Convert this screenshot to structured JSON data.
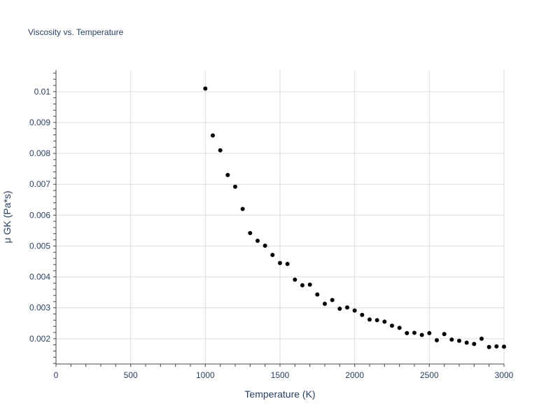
{
  "chart_data": {
    "type": "scatter",
    "title": "Viscosity vs. Temperature",
    "xlabel": "Temperature (K)",
    "ylabel": "μ GK (Pa*s)",
    "xlim": [
      0,
      3000
    ],
    "ylim": [
      0.00118,
      0.0107
    ],
    "xticks": [
      0,
      500,
      1000,
      1500,
      2000,
      2500,
      3000
    ],
    "xtick_labels": [
      "0",
      "500",
      "1000",
      "1500",
      "2000",
      "2500",
      "3000"
    ],
    "yticks": [
      0.002,
      0.003,
      0.004,
      0.005,
      0.006,
      0.007,
      0.008,
      0.009,
      0.01
    ],
    "ytick_labels": [
      "0.002",
      "0.003",
      "0.004",
      "0.005",
      "0.006",
      "0.007",
      "0.008",
      "0.009",
      "0.01"
    ],
    "grid": true,
    "marker_color": "#000000",
    "x": [
      1000,
      1050,
      1100,
      1150,
      1200,
      1250,
      1300,
      1350,
      1400,
      1450,
      1500,
      1550,
      1600,
      1650,
      1700,
      1750,
      1800,
      1850,
      1900,
      1950,
      2000,
      2050,
      2100,
      2150,
      2200,
      2250,
      2300,
      2350,
      2400,
      2450,
      2500,
      2550,
      2600,
      2650,
      2700,
      2750,
      2800,
      2850,
      2900,
      2950,
      3000
    ],
    "y": [
      0.0101,
      0.00858,
      0.0081,
      0.0073,
      0.00692,
      0.0062,
      0.00542,
      0.00517,
      0.00501,
      0.00471,
      0.00445,
      0.00442,
      0.00391,
      0.00373,
      0.00375,
      0.00343,
      0.00313,
      0.00325,
      0.00297,
      0.00301,
      0.00291,
      0.00277,
      0.00262,
      0.0026,
      0.00255,
      0.00242,
      0.00235,
      0.00218,
      0.00219,
      0.00212,
      0.00218,
      0.00195,
      0.00215,
      0.00197,
      0.00193,
      0.00187,
      0.00183,
      0.002,
      0.00173,
      0.00175,
      0.00174
    ]
  }
}
